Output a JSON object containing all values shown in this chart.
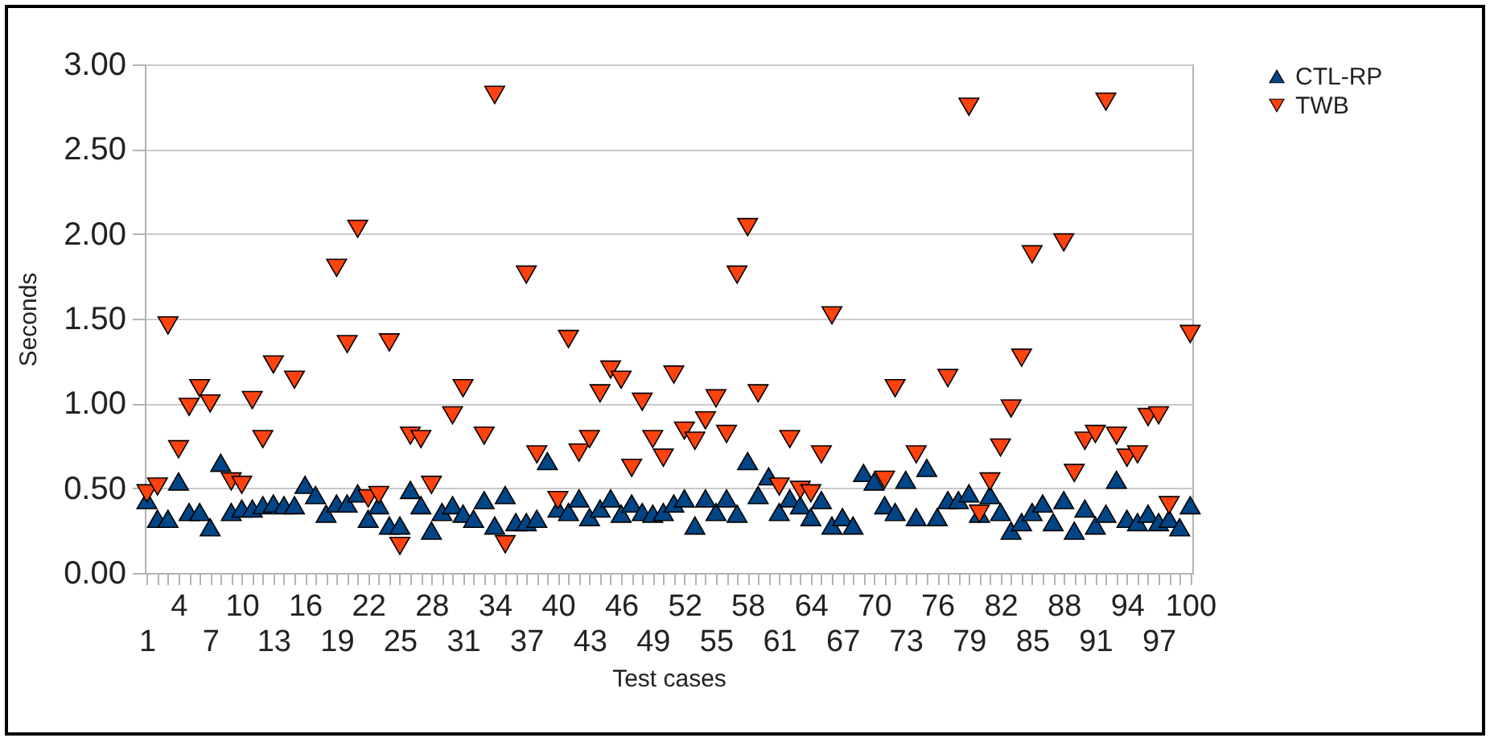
{
  "chart_data": {
    "type": "scatter",
    "xlabel": "Test cases",
    "ylabel": "Seconds",
    "categories": [
      "1",
      null,
      null,
      "4",
      null,
      null,
      "7",
      null,
      null,
      "10",
      null,
      null,
      "13",
      null,
      null,
      "16",
      null,
      null,
      "19",
      null,
      null,
      "22",
      null,
      null,
      "25",
      null,
      null,
      "28",
      null,
      null,
      "31",
      null,
      null,
      "34",
      null,
      null,
      "37",
      null,
      null,
      "40",
      null,
      null,
      "43",
      null,
      null,
      "46",
      null,
      null,
      "49",
      null,
      null,
      "52",
      null,
      null,
      "55",
      null,
      null,
      "58",
      null,
      null,
      "61",
      null,
      null,
      "64",
      null,
      null,
      "67",
      null,
      null,
      "70",
      null,
      null,
      "73",
      null,
      null,
      "76",
      null,
      null,
      "79",
      null,
      null,
      "82",
      null,
      null,
      "85",
      null,
      null,
      "88",
      null,
      null,
      "91",
      null,
      null,
      "94",
      null,
      null,
      "97",
      null,
      null,
      "100"
    ],
    "series": [
      {
        "name": "CTL-RP",
        "color": "#004586",
        "marker": "triangle",
        "values": [
          0.43,
          0.32,
          0.32,
          0.54,
          0.36,
          0.36,
          0.27,
          0.65,
          0.36,
          0.38,
          0.38,
          0.4,
          0.41,
          0.4,
          0.4,
          0.52,
          0.46,
          0.35,
          0.41,
          0.41,
          0.47,
          0.32,
          0.4,
          0.28,
          0.28,
          0.49,
          0.4,
          0.25,
          0.36,
          0.4,
          0.35,
          0.32,
          0.43,
          0.28,
          0.46,
          0.3,
          0.3,
          0.32,
          0.66,
          0.38,
          0.36,
          0.44,
          0.33,
          0.38,
          0.44,
          0.35,
          0.41,
          0.36,
          0.35,
          0.36,
          0.41,
          0.44,
          0.28,
          0.44,
          0.36,
          0.44,
          0.35,
          0.66,
          0.46,
          0.57,
          0.36,
          0.44,
          0.4,
          0.33,
          0.43,
          0.28,
          0.33,
          0.28,
          0.59,
          0.54,
          0.4,
          0.36,
          0.55,
          0.33,
          0.62,
          0.33,
          0.43,
          0.43,
          0.47,
          0.35,
          0.46,
          0.36,
          0.25,
          0.3,
          0.36,
          0.41,
          0.3,
          0.43,
          0.25,
          0.38,
          0.28,
          0.35,
          0.55,
          0.32,
          0.3,
          0.35,
          0.3,
          0.32,
          0.27,
          0.4
        ]
      },
      {
        "name": "TWB",
        "color": "#ff420e",
        "marker": "triangle-down",
        "values": [
          0.47,
          0.51,
          1.46,
          0.73,
          0.98,
          1.09,
          1.0,
          null,
          0.54,
          0.52,
          1.02,
          0.79,
          1.23,
          null,
          1.14,
          null,
          null,
          null,
          1.8,
          1.35,
          2.03,
          0.44,
          0.46,
          1.36,
          0.16,
          0.81,
          0.79,
          0.52,
          null,
          0.93,
          1.09,
          null,
          0.81,
          2.82,
          0.17,
          null,
          1.76,
          0.7,
          null,
          0.43,
          1.38,
          0.71,
          0.79,
          1.06,
          1.2,
          1.14,
          0.62,
          1.01,
          0.79,
          0.68,
          1.17,
          0.84,
          0.78,
          0.9,
          1.03,
          0.82,
          1.76,
          2.04,
          1.06,
          null,
          0.51,
          0.79,
          0.49,
          0.47,
          0.7,
          1.52,
          null,
          null,
          null,
          null,
          0.55,
          1.09,
          null,
          0.7,
          null,
          null,
          1.15,
          null,
          2.75,
          0.35,
          0.54,
          0.74,
          0.97,
          1.27,
          1.88,
          null,
          null,
          1.95,
          0.59,
          0.78,
          0.82,
          2.78,
          0.81,
          0.68,
          0.7,
          0.92,
          0.93,
          0.4,
          null,
          1.41
        ]
      }
    ],
    "ylim": [
      0,
      3
    ],
    "yticks": [
      {
        "value": 0,
        "label": "0.00"
      },
      {
        "value": 0.5,
        "label": "0.50"
      },
      {
        "value": 1,
        "label": "1.00"
      },
      {
        "value": 1.5,
        "label": "1.50"
      },
      {
        "value": 2,
        "label": "2.00"
      },
      {
        "value": 2.5,
        "label": "2.50"
      },
      {
        "value": 3,
        "label": "3.00"
      }
    ],
    "grid": "y",
    "legend": "right"
  }
}
